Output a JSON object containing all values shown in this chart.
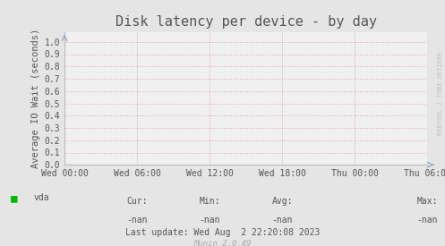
{
  "title": "Disk latency per device - by day",
  "ylabel": "Average IO Wait (seconds)",
  "background_color": "#e5e5e5",
  "plot_bg_color": "#f0f0f0",
  "grid_color": "#e8a0a0",
  "yticks": [
    0.0,
    0.1,
    0.2,
    0.3,
    0.4,
    0.5,
    0.6,
    0.7,
    0.8,
    0.9,
    1.0
  ],
  "ylim": [
    0.0,
    1.08
  ],
  "xtick_labels": [
    "Wed 00:00",
    "Wed 06:00",
    "Wed 12:00",
    "Wed 18:00",
    "Thu 00:00",
    "Thu 06:00"
  ],
  "legend_label": "vda",
  "legend_color": "#00bb00",
  "cur_label": "Cur:",
  "cur_value": "-nan",
  "min_label": "Min:",
  "min_value": "-nan",
  "avg_label": "Avg:",
  "avg_value": "-nan",
  "max_label": "Max:",
  "max_value": "-nan",
  "last_update": "Last update: Wed Aug  2 22:20:08 2023",
  "munin_version": "Munin 2.0.49",
  "watermark": "RRDTOOL / TOBI OETIKER",
  "title_fontsize": 11,
  "axis_label_fontsize": 7.5,
  "tick_fontsize": 7,
  "footer_fontsize": 7,
  "watermark_fontsize": 5,
  "spine_color": "#bbbbbb",
  "arrow_color": "#99aacc",
  "text_color": "#555555"
}
